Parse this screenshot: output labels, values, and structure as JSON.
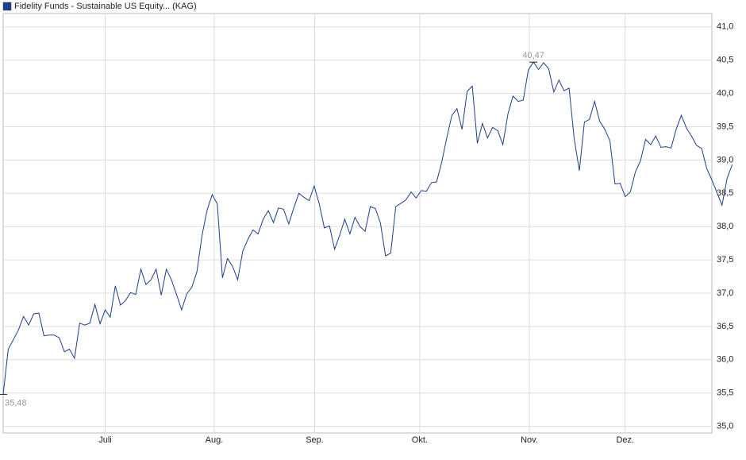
{
  "chart_data": {
    "type": "line",
    "series": [
      {
        "name": "Fidelity Funds - Sustainable US Equity... (KAG)",
        "color": "#1c3f8c",
        "values": [
          35.48,
          36.16,
          36.3,
          36.45,
          36.65,
          36.52,
          36.69,
          36.7,
          36.36,
          36.37,
          36.37,
          36.33,
          36.12,
          36.16,
          36.02,
          36.55,
          36.52,
          36.55,
          36.83,
          36.54,
          36.75,
          36.64,
          37.11,
          36.82,
          36.89,
          37.01,
          36.98,
          37.36,
          37.13,
          37.2,
          37.36,
          36.97,
          37.36,
          37.2,
          36.98,
          36.75,
          36.99,
          37.09,
          37.32,
          37.87,
          38.25,
          38.48,
          38.34,
          37.23,
          37.52,
          37.4,
          37.2,
          37.63,
          37.81,
          37.95,
          37.89,
          38.11,
          38.24,
          38.06,
          38.28,
          38.26,
          38.04,
          38.28,
          38.5,
          38.44,
          38.39,
          38.61,
          38.34,
          37.98,
          38.01,
          37.66,
          37.87,
          38.11,
          37.89,
          38.14,
          38.0,
          37.93,
          38.3,
          38.27,
          38.05,
          37.56,
          37.6,
          38.3,
          38.35,
          38.4,
          38.52,
          38.43,
          38.54,
          38.53,
          38.66,
          38.67,
          38.96,
          39.33,
          39.67,
          39.77,
          39.46,
          40.03,
          40.11,
          39.25,
          39.55,
          39.33,
          39.49,
          39.44,
          39.23,
          39.69,
          39.96,
          39.88,
          39.9,
          40.35,
          40.47,
          40.36,
          40.46,
          40.37,
          40.02,
          40.2,
          40.04,
          40.08,
          39.32,
          38.84,
          39.57,
          39.61,
          39.88,
          39.58,
          39.46,
          39.29,
          38.64,
          38.65,
          38.45,
          38.52,
          38.82,
          38.99,
          39.31,
          39.23,
          39.36,
          39.19,
          39.2,
          39.18,
          39.46,
          39.67,
          39.48,
          39.36,
          39.22,
          39.17,
          38.87,
          38.7,
          38.51,
          38.32,
          38.73,
          38.93
        ]
      }
    ],
    "xlim": [
      0,
      139
    ],
    "xticks": [
      {
        "value": 20,
        "label": "Juli"
      },
      {
        "value": 41.4,
        "label": "Aug."
      },
      {
        "value": 61.1,
        "label": "Sep."
      },
      {
        "value": 81.7,
        "label": "Okt."
      },
      {
        "value": 103.2,
        "label": "Nov."
      },
      {
        "value": 122,
        "label": "Dez."
      }
    ],
    "ylim": [
      34.9,
      41.2
    ],
    "yticks": [
      {
        "value": 35,
        "label": "35,0"
      },
      {
        "value": 35.5,
        "label": "35,5"
      },
      {
        "value": 36,
        "label": "36,0"
      },
      {
        "value": 36.5,
        "label": "36,5"
      },
      {
        "value": 37,
        "label": "37,0"
      },
      {
        "value": 37.5,
        "label": "37,5"
      },
      {
        "value": 38,
        "label": "38,0"
      },
      {
        "value": 38.5,
        "label": "38,5"
      },
      {
        "value": 39,
        "label": "39,0"
      },
      {
        "value": 39.5,
        "label": "39,5"
      },
      {
        "value": 40,
        "label": "40,0"
      },
      {
        "value": 40.5,
        "label": "40,5"
      },
      {
        "value": 41,
        "label": "41,0"
      }
    ],
    "annotations": [
      {
        "text": "40,47",
        "value": 40.47
      },
      {
        "text": "35,48",
        "value": 35.48
      }
    ],
    "grid": true
  }
}
